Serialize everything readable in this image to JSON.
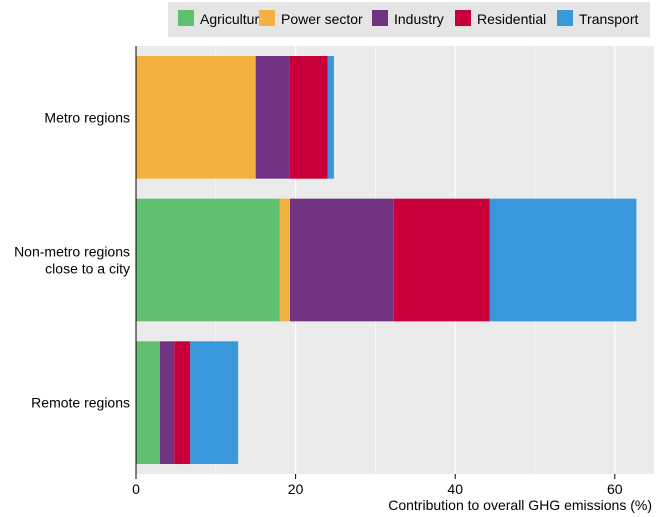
{
  "chart_data": {
    "type": "bar",
    "orientation": "horizontal",
    "stacked": true,
    "categories": [
      "Metro regions",
      "Non-metro regions close to a city",
      "Remote regions"
    ],
    "category_lines": [
      [
        "Metro regions"
      ],
      [
        "Non-metro regions",
        "close to a city"
      ],
      [
        "Remote regions"
      ]
    ],
    "series": [
      {
        "name": "Agriculture",
        "color": "#60bf71",
        "values": [
          0.0,
          18.0,
          3.0
        ]
      },
      {
        "name": "Power sector",
        "color": "#f5b042",
        "values": [
          15.0,
          1.3,
          0.0
        ]
      },
      {
        "name": "Industry",
        "color": "#733383",
        "values": [
          4.2,
          13.0,
          1.8
        ]
      },
      {
        "name": "Residential",
        "color": "#c8003a",
        "values": [
          4.8,
          12.0,
          2.0
        ]
      },
      {
        "name": "Transport",
        "color": "#3898db",
        "values": [
          0.8,
          18.4,
          6.0
        ]
      }
    ],
    "xlabel": "Contribution to overall GHG emissions (%)",
    "xlim": [
      0,
      65
    ],
    "xticks": [
      0,
      20,
      40,
      60
    ],
    "grid": true,
    "legend_position": "top"
  }
}
